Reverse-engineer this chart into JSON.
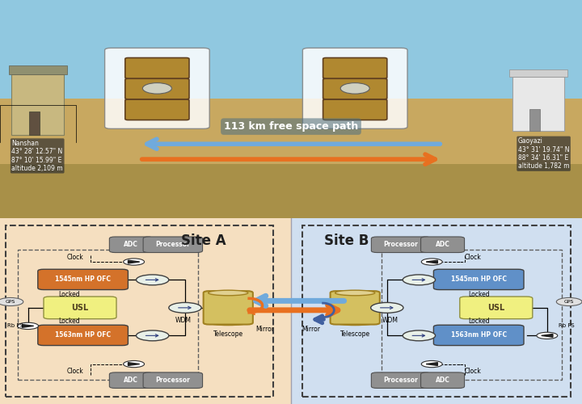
{
  "top_bg_color": "#c8dde8",
  "bottom_left_bg": "#f5dfc0",
  "bottom_right_bg": "#d0dff0",
  "arrow_orange": "#e87020",
  "arrow_blue": "#70aadc",
  "ofc_color_A": "#d4722a",
  "ofc_color_B": "#6090c8",
  "usl_color": "#f0f080",
  "adc_proc_color": "#909090",
  "telescope_color": "#d4c060",
  "title_label_A": "Site A",
  "title_label_B": "Site B",
  "nanshan_text": "Nanshan\n43° 28' 12.57\" N\n87° 10' 15.99\" E\naltitude 2,109 m",
  "gaoyazi_text": "Gaoyazi\n43° 31' 19.74\" N\n88° 34' 16.31\" E\naltitude 1,782 m",
  "distance_text": "113 km free space path"
}
